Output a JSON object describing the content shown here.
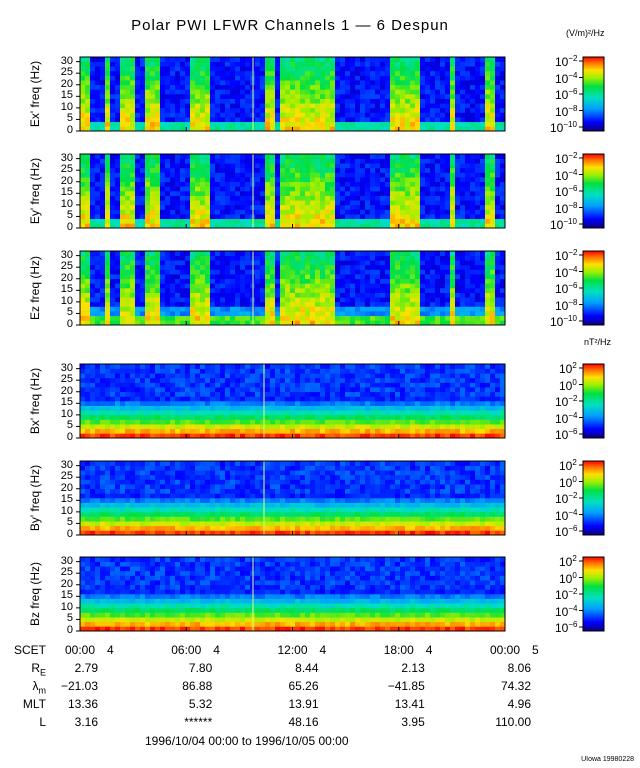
{
  "chart_data": {
    "type": "heatmap",
    "title": "Polar PWI LFWR Channels 1 — 6 Despun",
    "panels": [
      {
        "ylabel": "Ex' freq (Hz)",
        "yticks": [
          0,
          5,
          10,
          15,
          20,
          25,
          30
        ],
        "kind": "E"
      },
      {
        "ylabel": "Ey' freq (Hz)",
        "yticks": [
          0,
          5,
          10,
          15,
          20,
          25,
          30
        ],
        "kind": "E"
      },
      {
        "ylabel": "Ez freq (Hz)",
        "yticks": [
          0,
          5,
          10,
          15,
          20,
          25,
          30
        ],
        "kind": "E"
      },
      {
        "ylabel": "Bx' freq (Hz)",
        "yticks": [
          0,
          5,
          10,
          15,
          20,
          25,
          30
        ],
        "kind": "B"
      },
      {
        "ylabel": "By' freq (Hz)",
        "yticks": [
          0,
          5,
          10,
          15,
          20,
          25,
          30
        ],
        "kind": "B"
      },
      {
        "ylabel": "Bz freq (Hz)",
        "yticks": [
          0,
          5,
          10,
          15,
          20,
          25,
          30
        ],
        "kind": "B"
      }
    ],
    "ylim": [
      0,
      32
    ],
    "colorbars": {
      "E": {
        "unit": "(V/m)²/Hz",
        "base": "10",
        "exponents": [
          "−2",
          "−4",
          "−6",
          "−8",
          "−10"
        ]
      },
      "B": {
        "unit": "nT²/Hz",
        "base": "10",
        "exponents": [
          "2",
          "0",
          "−2",
          "−4",
          "−6"
        ]
      }
    },
    "x_axis": {
      "label": "SCET",
      "ticks": [
        "00:00",
        "06:00",
        "12:00",
        "18:00",
        "00:00"
      ],
      "day_labels": [
        "4",
        "4",
        "4",
        "4",
        "5"
      ]
    },
    "ephemeris": [
      {
        "label": "R",
        "sub": "E",
        "values": [
          "2.79",
          "7.80",
          "8.44",
          "2.13",
          "8.06"
        ]
      },
      {
        "label": "λ",
        "sub": "m",
        "values": [
          "−21.03",
          "86.88",
          "65.26",
          "−41.85",
          "74.32"
        ]
      },
      {
        "label": "MLT",
        "sub": "",
        "values": [
          "13.36",
          "5.32",
          "13.91",
          "13.41",
          "4.96"
        ]
      },
      {
        "label": "L",
        "sub": "",
        "values": [
          "3.16",
          "******",
          "48.16",
          "3.95",
          "110.00"
        ]
      }
    ],
    "time_range": "1996/10/04 00:00 to 1996/10/05 00:00",
    "credit": "UIowa 19980228",
    "colors": {
      "background": "#0a1a8c",
      "low": "#0000b0",
      "mid": "#00e070",
      "high": "#ff2000"
    }
  }
}
